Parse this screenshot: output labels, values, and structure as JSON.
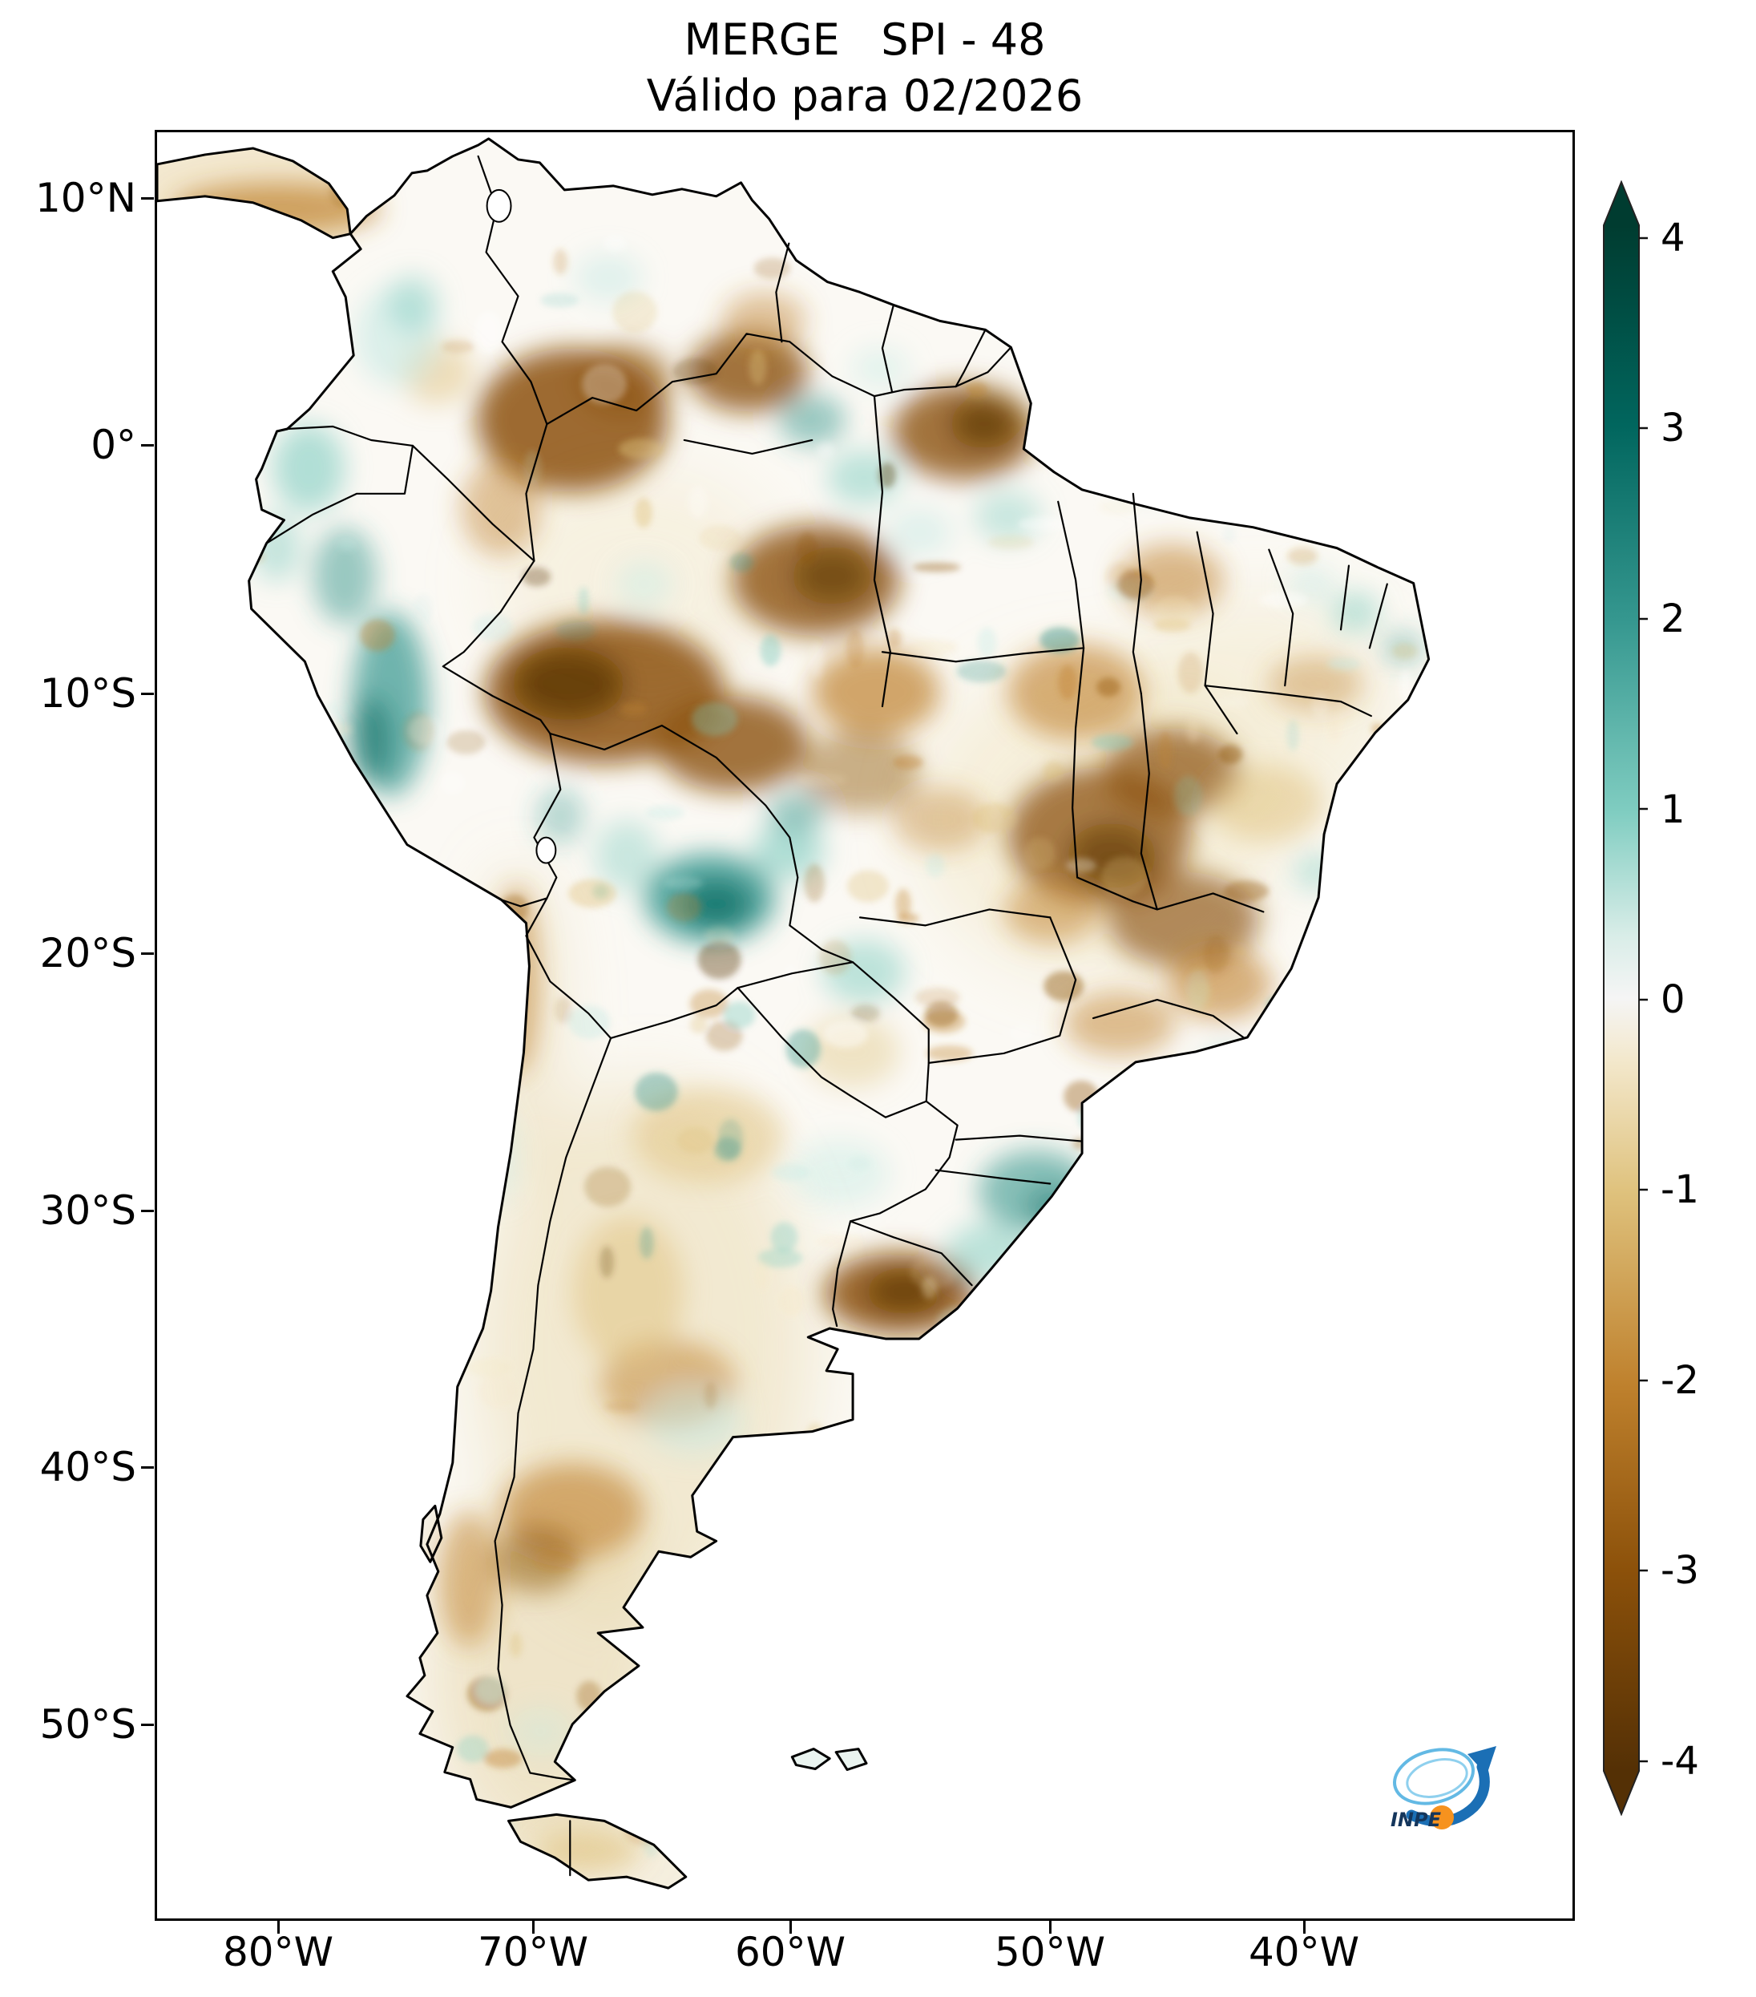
{
  "figure": {
    "title": "MERGE   SPI - 48",
    "subtitle": "Válido para 02/2026"
  },
  "axes": {
    "y_ticks": [
      "10°N",
      "0°",
      "10°S",
      "20°S",
      "30°S",
      "40°S",
      "50°S"
    ],
    "x_ticks": [
      "80°W",
      "70°W",
      "60°W",
      "50°W",
      "40°W"
    ]
  },
  "colorbar": {
    "tick_labels": [
      "4",
      "3",
      "2",
      "1",
      "0",
      "-1",
      "-2",
      "-3",
      "-4"
    ],
    "top_color": "#003c30",
    "middle_color": "#f5f5f5",
    "bottom_color": "#543005"
  },
  "logo": {
    "label": "INPE"
  }
}
